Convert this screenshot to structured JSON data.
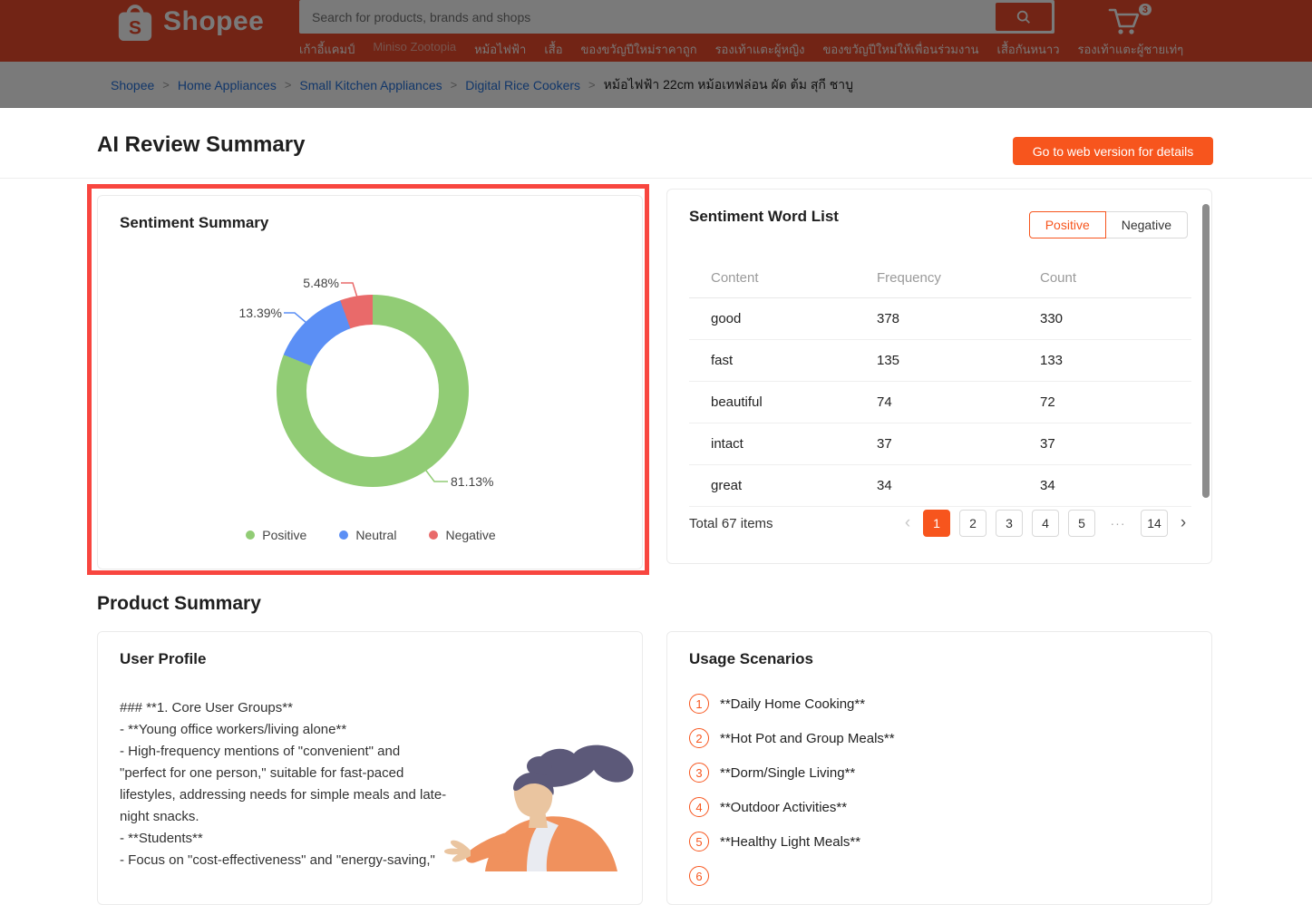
{
  "header": {
    "logo_text": "Shopee",
    "search": {
      "placeholder": "Search for products, brands and shops"
    },
    "cart_count": "3",
    "nav_items": [
      {
        "label": "เก้าอี้แคมป์"
      },
      {
        "label": "Miniso Zootopia",
        "muted": true
      },
      {
        "label": "หม้อไฟฟ้า"
      },
      {
        "label": "เสื้อ"
      },
      {
        "label": "ของขวัญปีใหม่ราคาถูก"
      },
      {
        "label": "รองเท้าแตะผู้หญิง"
      },
      {
        "label": "ของขวัญปีใหม่ให้เพื่อนร่วมงาน"
      },
      {
        "label": "เสื้อกันหนาว"
      },
      {
        "label": "รองเท้าแตะผู้ชายเท่ๆ"
      }
    ]
  },
  "breadcrumb": {
    "links": [
      "Shopee",
      "Home Appliances",
      "Small Kitchen Appliances",
      "Digital Rice Cookers"
    ],
    "current": "หม้อไฟฟ้า 22cm หม้อเทฟล่อน ผัด ต้ม สุกี ชาบู"
  },
  "page": {
    "title": "AI Review Summary",
    "cta_label": "Go to web version for details",
    "section_title": "Product Summary"
  },
  "chart_data": {
    "type": "pie",
    "donut": true,
    "title": "Sentiment Summary",
    "unit": "%",
    "legend_position": "bottom",
    "slices": [
      {
        "name": "Positive",
        "value": 81.13,
        "color": "#91cc75"
      },
      {
        "name": "Neutral",
        "value": 13.39,
        "color": "#5b8ff5"
      },
      {
        "name": "Negative",
        "value": 5.48,
        "color": "#e96a6a"
      }
    ]
  },
  "word_list": {
    "title": "Sentiment Word List",
    "tabs": [
      {
        "label": "Positive",
        "active": true
      },
      {
        "label": "Negative",
        "active": false
      }
    ],
    "columns": [
      "Content",
      "Frequency",
      "Count"
    ],
    "rows": [
      {
        "content": "good",
        "frequency": "378",
        "count": "330"
      },
      {
        "content": "fast",
        "frequency": "135",
        "count": "133"
      },
      {
        "content": "beautiful",
        "frequency": "74",
        "count": "72"
      },
      {
        "content": "intact",
        "frequency": "37",
        "count": "37"
      },
      {
        "content": "great",
        "frequency": "34",
        "count": "34"
      }
    ],
    "pagination": {
      "total_label": "Total 67 items",
      "items": [
        {
          "label": "‹",
          "type": "prev"
        },
        {
          "label": "1",
          "type": "active"
        },
        {
          "label": "2",
          "type": "page"
        },
        {
          "label": "3",
          "type": "page"
        },
        {
          "label": "4",
          "type": "page"
        },
        {
          "label": "5",
          "type": "page"
        },
        {
          "label": "···",
          "type": "ellipsis"
        },
        {
          "label": "14",
          "type": "page"
        },
        {
          "label": "›",
          "type": "next"
        }
      ]
    }
  },
  "user_profile": {
    "title": "User Profile",
    "lines": [
      "### **1. Core User Groups**",
      "- **Young office workers/living alone**",
      "- High-frequency mentions of \"convenient\" and",
      "\"perfect for one person,\" suitable for fast-paced",
      "lifestyles, addressing needs for simple meals and late-",
      "night snacks.",
      "- **Students**",
      "- Focus on \"cost-effectiveness\" and \"energy-saving,\""
    ]
  },
  "usage_scenarios": {
    "title": "Usage Scenarios",
    "items": [
      {
        "number": "1",
        "label": "**Daily Home Cooking**"
      },
      {
        "number": "2",
        "label": "**Hot Pot and Group Meals**"
      },
      {
        "number": "3",
        "label": "**Dorm/Single Living**"
      },
      {
        "number": "4",
        "label": "**Outdoor Activities**"
      },
      {
        "number": "5",
        "label": "**Healthy Light Meals**"
      },
      {
        "number": "6",
        "label": ""
      }
    ]
  },
  "colors": {
    "brand_orange": "#ee4d2d",
    "accent_orange": "#f7551d",
    "highlight_red": "#f8463f",
    "link_blue": "#2673dd",
    "positive_green": "#91cc75",
    "neutral_blue": "#5b8ff5",
    "negative_red": "#e96a6a"
  }
}
